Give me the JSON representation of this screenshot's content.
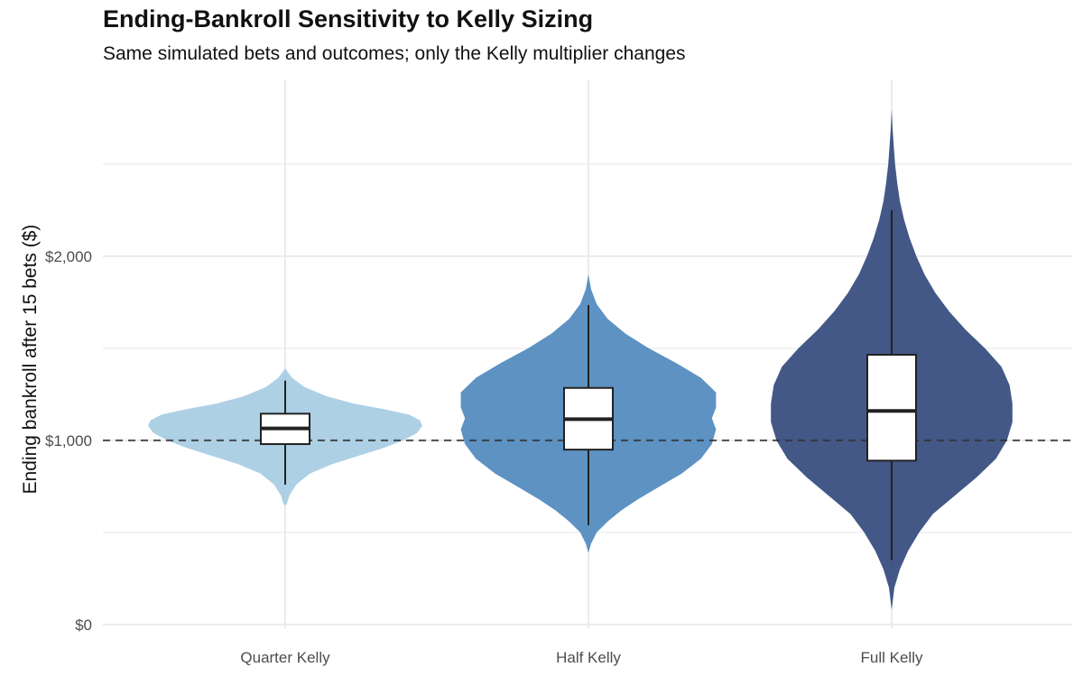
{
  "chart_data": {
    "type": "violin",
    "title": "Ending-Bankroll Sensitivity to Kelly Sizing",
    "subtitle": "Same simulated bets and outcomes; only the Kelly multiplier changes",
    "ylabel": "Ending bankroll after 15 bets ($)",
    "xlabel": "",
    "categories": [
      "Quarter Kelly",
      "Half Kelly",
      "Full Kelly"
    ],
    "ylim": [
      -20,
      2960
    ],
    "yticks": [
      0,
      1000,
      2000
    ],
    "ytick_labels": [
      "$0",
      "$1,000",
      "$2,000"
    ],
    "reference_line": {
      "y": 1000,
      "style": "dashed"
    },
    "grid": true,
    "legend": "none",
    "colors": [
      "#a6cce3",
      "#4f89be",
      "#334a7d"
    ],
    "violins": [
      {
        "name": "Quarter Kelly",
        "min": 650,
        "max": 1390,
        "box": {
          "whisker_low": 760,
          "q1": 980,
          "median": 1065,
          "q3": 1145,
          "whisker_high": 1325
        },
        "density": [
          [
            650,
            0.01
          ],
          [
            700,
            0.03
          ],
          [
            760,
            0.08
          ],
          [
            820,
            0.18
          ],
          [
            870,
            0.34
          ],
          [
            920,
            0.55
          ],
          [
            960,
            0.72
          ],
          [
            1000,
            0.86
          ],
          [
            1040,
            0.96
          ],
          [
            1080,
            1.0
          ],
          [
            1110,
            0.98
          ],
          [
            1140,
            0.9
          ],
          [
            1170,
            0.72
          ],
          [
            1200,
            0.5
          ],
          [
            1240,
            0.3
          ],
          [
            1290,
            0.14
          ],
          [
            1340,
            0.05
          ],
          [
            1390,
            0.0
          ]
        ]
      },
      {
        "name": "Half Kelly",
        "min": 390,
        "max": 1900,
        "box": {
          "whisker_low": 540,
          "q1": 950,
          "median": 1115,
          "q3": 1285,
          "whisker_high": 1735
        },
        "density": [
          [
            390,
            0.0
          ],
          [
            440,
            0.02
          ],
          [
            500,
            0.06
          ],
          [
            560,
            0.14
          ],
          [
            620,
            0.24
          ],
          [
            680,
            0.36
          ],
          [
            750,
            0.52
          ],
          [
            820,
            0.68
          ],
          [
            900,
            0.82
          ],
          [
            980,
            0.9
          ],
          [
            1060,
            0.93
          ],
          [
            1120,
            0.9
          ],
          [
            1180,
            0.93
          ],
          [
            1260,
            0.93
          ],
          [
            1340,
            0.82
          ],
          [
            1420,
            0.64
          ],
          [
            1500,
            0.44
          ],
          [
            1580,
            0.27
          ],
          [
            1660,
            0.14
          ],
          [
            1740,
            0.06
          ],
          [
            1820,
            0.02
          ],
          [
            1900,
            0.0
          ]
        ]
      },
      {
        "name": "Full Kelly",
        "min": 80,
        "max": 2800,
        "box": {
          "whisker_low": 350,
          "q1": 890,
          "median": 1160,
          "q3": 1465,
          "whisker_high": 2250
        },
        "density": [
          [
            80,
            0.0
          ],
          [
            200,
            0.02
          ],
          [
            300,
            0.06
          ],
          [
            400,
            0.12
          ],
          [
            500,
            0.2
          ],
          [
            600,
            0.3
          ],
          [
            700,
            0.46
          ],
          [
            800,
            0.62
          ],
          [
            900,
            0.76
          ],
          [
            1000,
            0.84
          ],
          [
            1100,
            0.88
          ],
          [
            1200,
            0.88
          ],
          [
            1300,
            0.86
          ],
          [
            1400,
            0.8
          ],
          [
            1500,
            0.68
          ],
          [
            1600,
            0.54
          ],
          [
            1700,
            0.42
          ],
          [
            1800,
            0.32
          ],
          [
            1900,
            0.24
          ],
          [
            2000,
            0.18
          ],
          [
            2100,
            0.13
          ],
          [
            2200,
            0.09
          ],
          [
            2300,
            0.06
          ],
          [
            2400,
            0.04
          ],
          [
            2500,
            0.025
          ],
          [
            2600,
            0.015
          ],
          [
            2700,
            0.006
          ],
          [
            2800,
            0.0
          ]
        ]
      }
    ]
  }
}
